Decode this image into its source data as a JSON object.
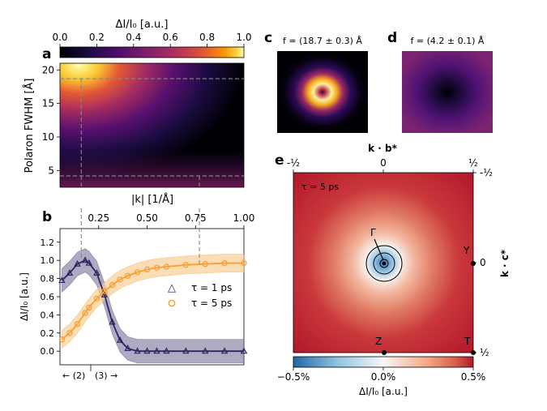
{
  "figure": {
    "panels": {
      "a": "a",
      "b": "b",
      "c": "c",
      "d": "d",
      "e": "e"
    },
    "colorbar_top": {
      "label": "ΔI/I₀ [a.u.]",
      "ticks": [
        "0.0",
        "0.2",
        "0.4",
        "0.6",
        "0.8",
        "1.0"
      ],
      "colormap": "inferno"
    },
    "panel_a": {
      "ylabel": "Polaron FWHM [Å]",
      "yticks": [
        "5",
        "10",
        "15",
        "20"
      ],
      "ylim": [
        2.5,
        21
      ],
      "xlim": [
        0.05,
        1.0
      ],
      "guide_lines_y": [
        18.7,
        4.2
      ]
    },
    "panel_b": {
      "top_xlabel": "|k| [1/Å]",
      "top_xticks": [
        "0.25",
        "0.50",
        "0.75",
        "1.00"
      ],
      "ylabel": "ΔI/I₀ [a.u.]",
      "yticks": [
        "0.0",
        "0.2",
        "0.4",
        "0.6",
        "0.8",
        "1.0",
        "1.2"
      ],
      "ylim": [
        -0.15,
        1.35
      ],
      "bottom_labels": [
        "← (2)",
        "(3) →"
      ],
      "legend": [
        "τ = 1 ps",
        "τ = 5 ps"
      ],
      "guide_lines_x": [
        0.16,
        0.77
      ]
    },
    "panel_c": {
      "title": "f = (18.7 ± 0.3) Å"
    },
    "panel_d": {
      "title": "f = (4.2 ± 0.1) Å"
    },
    "panel_e": {
      "top_axis_label": "k · b*",
      "top_ticks": [
        "-½",
        "0",
        "½"
      ],
      "right_axis_label": "k · c*",
      "right_ticks": [
        "-½",
        "0",
        "½"
      ],
      "annotation": "τ = 5 ps",
      "points": [
        "Γ",
        "Y",
        "Z",
        "T"
      ],
      "colorbar_label": "ΔI/I₀ [a.u.]",
      "colorbar_ticks": [
        "−0.5%",
        "0.0%",
        "0.5%"
      ],
      "colormap": "RdBu_r"
    },
    "colors": {
      "series_1ps": "#2d2461",
      "series_5ps": "#f7a035",
      "band_1ps": "#8a87a8",
      "band_5ps": "#f8cd96",
      "guide": "#888888"
    }
  },
  "chart_data": [
    {
      "type": "line",
      "panel": "b",
      "xlabel": "|k| [1/Å]",
      "ylabel": "ΔI/I₀ [a.u.]",
      "xlim": [
        0.05,
        1.0
      ],
      "ylim": [
        -0.15,
        1.35
      ],
      "x": [
        0.06,
        0.1,
        0.14,
        0.18,
        0.2,
        0.24,
        0.28,
        0.32,
        0.36,
        0.4,
        0.45,
        0.5,
        0.55,
        0.6,
        0.7,
        0.8,
        0.9,
        1.0
      ],
      "series": [
        {
          "name": "τ = 1 ps",
          "values": [
            0.78,
            0.86,
            0.96,
            1.0,
            0.97,
            0.86,
            0.62,
            0.32,
            0.12,
            0.03,
            0.0,
            0.0,
            0.0,
            0.0,
            0.0,
            0.0,
            0.0,
            0.0
          ]
        },
        {
          "name": "τ = 5 ps",
          "values": [
            0.13,
            0.2,
            0.3,
            0.42,
            0.48,
            0.58,
            0.66,
            0.73,
            0.79,
            0.83,
            0.87,
            0.9,
            0.92,
            0.93,
            0.95,
            0.96,
            0.97,
            0.97
          ]
        }
      ]
    }
  ]
}
